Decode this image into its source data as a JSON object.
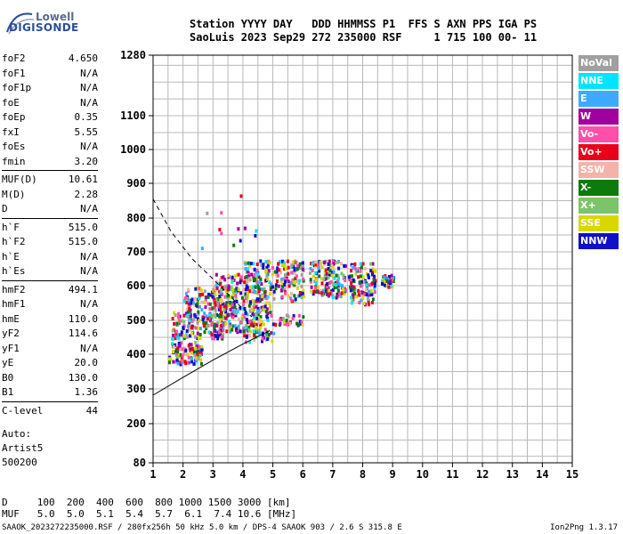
{
  "logo": {
    "line1": "Lowell",
    "line2": "DIGISONDE"
  },
  "header": {
    "line1": "Station YYYY DAY   DDD HHMMSS P1  FFS S AXN PPS IGA PS",
    "line2": "SaoLuis 2023 Sep29 272 235000 RSF     1 715 100 00- 11"
  },
  "params": [
    {
      "label": "foF2",
      "value": "4.650"
    },
    {
      "label": "foF1",
      "value": "N/A"
    },
    {
      "label": "foF1p",
      "value": "N/A"
    },
    {
      "label": "foE",
      "value": "N/A"
    },
    {
      "label": "foEp",
      "value": "0.35"
    },
    {
      "label": "fxI",
      "value": "5.55"
    },
    {
      "label": "foEs",
      "value": "N/A"
    },
    {
      "label": "fmin",
      "value": "3.20"
    },
    {
      "label": "MUF(D)",
      "value": "10.61"
    },
    {
      "label": "M(D)",
      "value": "2.28"
    },
    {
      "label": "D",
      "value": "N/A"
    },
    {
      "label": "h`F",
      "value": "515.0"
    },
    {
      "label": "h`F2",
      "value": "515.0"
    },
    {
      "label": "h`E",
      "value": "N/A"
    },
    {
      "label": "h`Es",
      "value": "N/A"
    },
    {
      "label": "hmF2",
      "value": "494.1"
    },
    {
      "label": "hmF1",
      "value": "N/A"
    },
    {
      "label": "hmE",
      "value": "110.0"
    },
    {
      "label": "yF2",
      "value": "114.6"
    },
    {
      "label": "yF1",
      "value": "N/A"
    },
    {
      "label": "yE",
      "value": "20.0"
    },
    {
      "label": "B0",
      "value": "130.0"
    },
    {
      "label": "B1",
      "value": "1.36"
    },
    {
      "label": "C-level",
      "value": "44"
    }
  ],
  "auto": {
    "line1": "Auto:",
    "line2": "Artist5",
    "line3": "500200"
  },
  "legend": [
    {
      "label": "NoVal",
      "color": "#a0a0a0"
    },
    {
      "label": "NNE",
      "color": "#00e5ff"
    },
    {
      "label": "E",
      "color": "#3fa9ff"
    },
    {
      "label": "W",
      "color": "#a0009e"
    },
    {
      "label": "Vo-",
      "color": "#ff4fa8"
    },
    {
      "label": "Vo+",
      "color": "#e8001a"
    },
    {
      "label": "SSW",
      "color": "#f4b2a8"
    },
    {
      "label": "X-",
      "color": "#0c7a0c"
    },
    {
      "label": "X+",
      "color": "#7cc46a"
    },
    {
      "label": "SSE",
      "color": "#d8d800"
    },
    {
      "label": "NNW",
      "color": "#1010c8"
    }
  ],
  "footer": {
    "line1": "D     100  200  400  600  800 1000 1500 3000 [km]",
    "line2": "MUF   5.0  5.0  5.1  5.4  5.7  6.1  7.4 10.6 [MHz]",
    "file": "SAAOK_2023272235000.RSF / 280fx256h 50 kHz 5.0 km / DPS-4 SAAOK 903 / 2.6 S 315.8 E",
    "version": "Ion2Png 1.3.17"
  },
  "chart_data": {
    "type": "scatter",
    "xlim": [
      1,
      15
    ],
    "x_ticks": [
      1,
      2,
      3,
      4,
      5,
      6,
      7,
      8,
      9,
      10,
      11,
      12,
      13,
      14,
      15
    ],
    "y_ticks": [
      80,
      200,
      300,
      400,
      500,
      600,
      700,
      800,
      900,
      1000,
      1100,
      1280
    ],
    "ylim": [
      80,
      1280
    ],
    "grid": true,
    "clusters": [
      {
        "x": [
          1.5,
          2.6
        ],
        "y": [
          375,
          440
        ],
        "n": 110
      },
      {
        "x": [
          1.6,
          3.4
        ],
        "y": [
          450,
          530
        ],
        "n": 160
      },
      {
        "x": [
          2.0,
          3.8
        ],
        "y": [
          520,
          600
        ],
        "n": 120
      },
      {
        "x": [
          3.0,
          4.6
        ],
        "y": [
          470,
          640
        ],
        "n": 240
      },
      {
        "x": [
          4.0,
          5.0
        ],
        "y": [
          440,
          680
        ],
        "n": 160
      },
      {
        "x": [
          5.0,
          6.0
        ],
        "y": [
          560,
          680
        ],
        "n": 120
      },
      {
        "x": [
          6.2,
          7.4
        ],
        "y": [
          570,
          680
        ],
        "n": 150
      },
      {
        "x": [
          7.5,
          8.4
        ],
        "y": [
          550,
          670
        ],
        "n": 120
      },
      {
        "x": [
          8.6,
          9.0
        ],
        "y": [
          600,
          635
        ],
        "n": 35
      },
      {
        "x": [
          5.0,
          6.0
        ],
        "y": [
          490,
          520
        ],
        "n": 30
      },
      {
        "x": [
          2.5,
          4.5
        ],
        "y": [
          690,
          900
        ],
        "n": 12
      }
    ],
    "trace_solid": [
      [
        1,
        282
      ],
      [
        2,
        333
      ],
      [
        3,
        383
      ],
      [
        4,
        430
      ],
      [
        4.9,
        470
      ]
    ],
    "trace_dashed": [
      [
        1,
        855
      ],
      [
        1.6,
        760
      ],
      [
        2.3,
        680
      ],
      [
        3,
        620
      ],
      [
        3.8,
        550
      ],
      [
        4.3,
        510
      ]
    ]
  }
}
